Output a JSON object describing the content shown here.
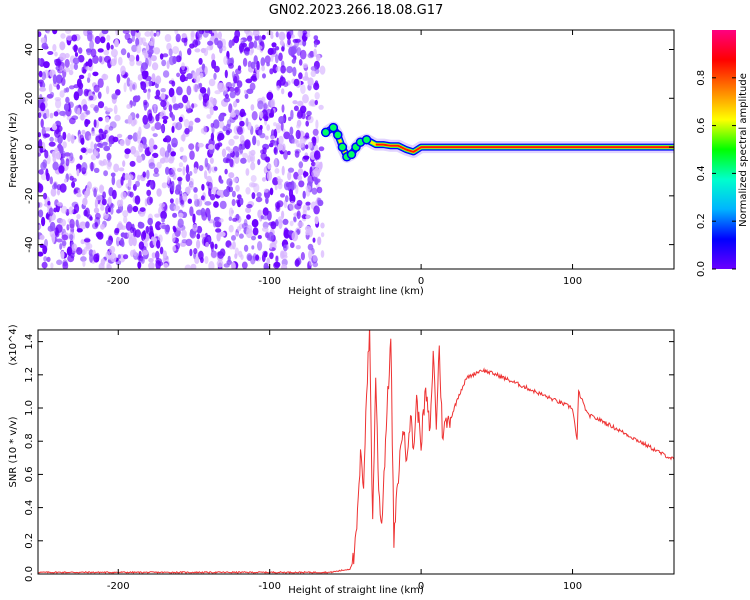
{
  "title": "GN02.2023.266.18.08.G17",
  "colors": {
    "snr_line": "#ee3333",
    "axis": "#000000",
    "noise_dense": "#6a00ff",
    "noise_light": "#d9b8ff"
  },
  "colormap": [
    "#6a00ff",
    "#0000ff",
    "#00b4ff",
    "#00ffcc",
    "#00ff00",
    "#ffff00",
    "#ff8000",
    "#ff0000",
    "#ff0080"
  ],
  "chart_data": [
    {
      "type": "heatmap",
      "title": "GN02.2023.266.18.08.G17",
      "xlabel": "Height of straight line (km)",
      "ylabel": "Frequency (Hz)",
      "xlim": [
        -253,
        167
      ],
      "ylim": [
        -50,
        48
      ],
      "xticks": [
        -200,
        -100,
        0,
        100
      ],
      "yticks": [
        -40,
        -20,
        0,
        20,
        40
      ],
      "grid": false,
      "colorbar": {
        "label": "Normalized spectral amplitude",
        "range": [
          0,
          1
        ],
        "ticks": [
          "0.0",
          "0.2",
          "0.4",
          "0.6",
          "0.8"
        ]
      },
      "noise_region_x": [
        -253,
        -65
      ],
      "signal_track": [
        {
          "x": -63,
          "f": 6
        },
        {
          "x": -58,
          "f": 8
        },
        {
          "x": -55,
          "f": 5
        },
        {
          "x": -52,
          "f": 0
        },
        {
          "x": -49,
          "f": -4
        },
        {
          "x": -46,
          "f": -3
        },
        {
          "x": -43,
          "f": 0
        },
        {
          "x": -40,
          "f": 2
        },
        {
          "x": -36,
          "f": 3
        },
        {
          "x": -30,
          "f": 1
        },
        {
          "x": -25,
          "f": 1
        },
        {
          "x": -20,
          "f": 0.5
        },
        {
          "x": -15,
          "f": 0.5
        },
        {
          "x": -10,
          "f": -1
        },
        {
          "x": -5,
          "f": -2
        },
        {
          "x": 0,
          "f": 0
        },
        {
          "x": 167,
          "f": 0
        }
      ]
    },
    {
      "type": "line",
      "xlabel": "Height of straight line (km)",
      "ylabel": "SNR (10 * v/v)",
      "y_multiplier": "(x10^4)",
      "xlim": [
        -253,
        167
      ],
      "ylim": [
        0,
        1.47
      ],
      "xticks": [
        -200,
        -100,
        0,
        100
      ],
      "yticks": [
        0.0,
        0.2,
        0.4,
        0.6,
        0.8,
        1.0,
        1.2,
        1.4
      ],
      "grid": false,
      "series": [
        {
          "values": [
            {
              "x": -253,
              "y": 0.01
            },
            {
              "x": -200,
              "y": 0.01
            },
            {
              "x": -150,
              "y": 0.01
            },
            {
              "x": -100,
              "y": 0.01
            },
            {
              "x": -60,
              "y": 0.01
            },
            {
              "x": -47,
              "y": 0.03
            },
            {
              "x": -44,
              "y": 0.1
            },
            {
              "x": -42,
              "y": 0.35
            },
            {
              "x": -40,
              "y": 0.7
            },
            {
              "x": -38,
              "y": 0.55
            },
            {
              "x": -36,
              "y": 1.1
            },
            {
              "x": -34,
              "y": 1.47
            },
            {
              "x": -32,
              "y": 0.3
            },
            {
              "x": -30,
              "y": 1.2
            },
            {
              "x": -28,
              "y": 0.5
            },
            {
              "x": -26,
              "y": 0.3
            },
            {
              "x": -23,
              "y": 0.9
            },
            {
              "x": -20,
              "y": 1.42
            },
            {
              "x": -18,
              "y": 0.2
            },
            {
              "x": -15,
              "y": 0.6
            },
            {
              "x": -12,
              "y": 0.9
            },
            {
              "x": -10,
              "y": 0.7
            },
            {
              "x": -7,
              "y": 0.95
            },
            {
              "x": -5,
              "y": 0.75
            },
            {
              "x": -3,
              "y": 1.05
            },
            {
              "x": 0,
              "y": 0.8
            },
            {
              "x": 3,
              "y": 1.1
            },
            {
              "x": 6,
              "y": 0.85
            },
            {
              "x": 8,
              "y": 1.35
            },
            {
              "x": 10,
              "y": 0.9
            },
            {
              "x": 12,
              "y": 1.37
            },
            {
              "x": 14,
              "y": 0.85
            },
            {
              "x": 16,
              "y": 0.9
            },
            {
              "x": 20,
              "y": 0.95
            },
            {
              "x": 25,
              "y": 1.08
            },
            {
              "x": 30,
              "y": 1.18
            },
            {
              "x": 40,
              "y": 1.23
            },
            {
              "x": 50,
              "y": 1.2
            },
            {
              "x": 60,
              "y": 1.16
            },
            {
              "x": 70,
              "y": 1.12
            },
            {
              "x": 80,
              "y": 1.08
            },
            {
              "x": 90,
              "y": 1.04
            },
            {
              "x": 100,
              "y": 1.0
            },
            {
              "x": 103,
              "y": 0.8
            },
            {
              "x": 104,
              "y": 1.1
            },
            {
              "x": 110,
              "y": 0.96
            },
            {
              "x": 120,
              "y": 0.92
            },
            {
              "x": 130,
              "y": 0.87
            },
            {
              "x": 140,
              "y": 0.82
            },
            {
              "x": 150,
              "y": 0.77
            },
            {
              "x": 160,
              "y": 0.72
            },
            {
              "x": 167,
              "y": 0.69
            }
          ]
        }
      ]
    }
  ]
}
